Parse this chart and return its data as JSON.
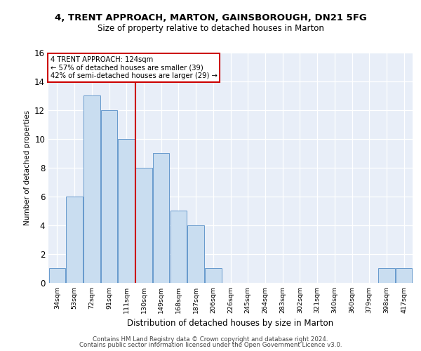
{
  "title1": "4, TRENT APPROACH, MARTON, GAINSBOROUGH, DN21 5FG",
  "title2": "Size of property relative to detached houses in Marton",
  "xlabel": "Distribution of detached houses by size in Marton",
  "ylabel": "Number of detached properties",
  "categories": [
    "34sqm",
    "53sqm",
    "72sqm",
    "91sqm",
    "111sqm",
    "130sqm",
    "149sqm",
    "168sqm",
    "187sqm",
    "206sqm",
    "226sqm",
    "245sqm",
    "264sqm",
    "283sqm",
    "302sqm",
    "321sqm",
    "340sqm",
    "360sqm",
    "379sqm",
    "398sqm",
    "417sqm"
  ],
  "values": [
    1,
    6,
    13,
    12,
    10,
    8,
    9,
    5,
    4,
    1,
    0,
    0,
    0,
    0,
    0,
    0,
    0,
    0,
    0,
    1,
    1
  ],
  "bar_color": "#c9ddf0",
  "bar_edge_color": "#6699cc",
  "red_line_x": 4.5,
  "annotation_line1": "4 TRENT APPROACH: 124sqm",
  "annotation_line2": "← 57% of detached houses are smaller (39)",
  "annotation_line3": "42% of semi-detached houses are larger (29) →",
  "annotation_box_color": "#ffffff",
  "annotation_box_edge": "#cc0000",
  "ylim": [
    0,
    16
  ],
  "yticks": [
    0,
    2,
    4,
    6,
    8,
    10,
    12,
    14,
    16
  ],
  "footer_line1": "Contains HM Land Registry data © Crown copyright and database right 2024.",
  "footer_line2": "Contains public sector information licensed under the Open Government Licence v3.0.",
  "background_color": "#e8eef8",
  "grid_color": "#ffffff",
  "fig_bg": "#ffffff"
}
